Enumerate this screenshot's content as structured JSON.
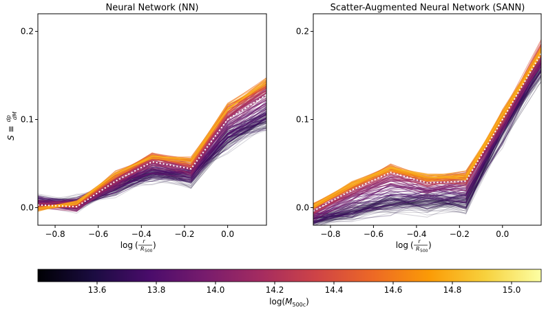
{
  "chart_data": [
    {
      "type": "line",
      "title": "Neural Network (NN)",
      "ylabel_main": "S ≡",
      "ylabel_frac_num": "dp",
      "ylabel_frac_den": "dM",
      "xlabel_prefix": "log",
      "xlabel_frac_num": "r",
      "xlabel_frac_den": "R",
      "xlabel_frac_den_sub": "500",
      "xlim": [
        -0.88,
        0.18
      ],
      "ylim": [
        -0.02,
        0.22
      ],
      "xticks": [
        -0.8,
        -0.6,
        -0.4,
        -0.2,
        0.0
      ],
      "xtick_labels": [
        "−0.8",
        "−0.6",
        "−0.4",
        "−0.2",
        "0.0"
      ],
      "yticks": [
        0.0,
        0.1,
        0.2
      ],
      "ytick_labels": [
        "0.0",
        "0.1",
        "0.2"
      ],
      "x": [
        -0.88,
        -0.7,
        -0.52,
        -0.35,
        -0.17,
        0.0,
        0.18
      ],
      "median": [
        0.003,
        0.001,
        0.03,
        0.052,
        0.044,
        0.1,
        0.128
      ],
      "mass_curves": [
        {
          "mass": 13.7,
          "y": [
            0.006,
            0.004,
            0.022,
            0.04,
            0.035,
            0.078,
            0.1
          ]
        },
        {
          "mass": 13.9,
          "y": [
            0.004,
            0.002,
            0.027,
            0.048,
            0.04,
            0.092,
            0.118
          ]
        },
        {
          "mass": 14.1,
          "y": [
            0.002,
            0.003,
            0.032,
            0.054,
            0.045,
            0.104,
            0.132
          ]
        },
        {
          "mass": 14.3,
          "y": [
            0.0,
            0.004,
            0.035,
            0.057,
            0.05,
            0.11,
            0.138
          ]
        },
        {
          "mass": 14.6,
          "y": [
            -0.002,
            0.006,
            0.038,
            0.058,
            0.053,
            0.113,
            0.143
          ]
        }
      ]
    },
    {
      "type": "line",
      "title": "Scatter-Augmented Neural Network (SANN)",
      "xlabel_prefix": "log",
      "xlabel_frac_num": "r",
      "xlabel_frac_den": "R",
      "xlabel_frac_den_sub": "500",
      "xlim": [
        -0.88,
        0.18
      ],
      "ylim": [
        -0.02,
        0.22
      ],
      "xticks": [
        -0.8,
        -0.6,
        -0.4,
        -0.2,
        0.0
      ],
      "xtick_labels": [
        "−0.8",
        "−0.6",
        "−0.4",
        "−0.2",
        "0.0"
      ],
      "yticks": [
        0.0,
        0.1,
        0.2
      ],
      "ytick_labels": [
        "0.0",
        "0.1",
        "0.2"
      ],
      "x": [
        -0.88,
        -0.7,
        -0.52,
        -0.35,
        -0.17,
        0.0,
        0.18
      ],
      "median": [
        -0.004,
        0.02,
        0.04,
        0.028,
        0.03,
        0.1,
        0.175
      ],
      "mass_curves": [
        {
          "mass": 13.7,
          "y": [
            -0.015,
            -0.005,
            0.005,
            0.006,
            0.008,
            0.088,
            0.16
          ]
        },
        {
          "mass": 13.9,
          "y": [
            -0.01,
            0.01,
            0.025,
            0.02,
            0.022,
            0.095,
            0.168
          ]
        },
        {
          "mass": 14.1,
          "y": [
            -0.005,
            0.018,
            0.036,
            0.028,
            0.03,
            0.1,
            0.175
          ]
        },
        {
          "mass": 14.3,
          "y": [
            -0.001,
            0.023,
            0.042,
            0.032,
            0.034,
            0.104,
            0.18
          ]
        },
        {
          "mass": 14.6,
          "y": [
            0.002,
            0.026,
            0.045,
            0.034,
            0.036,
            0.105,
            0.178
          ]
        }
      ]
    }
  ],
  "colorbar": {
    "label_prefix": "log(",
    "label_var": "M",
    "label_sub": "500c",
    "label_suffix": ")",
    "range": [
      13.4,
      15.1
    ],
    "ticks": [
      13.6,
      13.8,
      14.0,
      14.2,
      14.4,
      14.6,
      14.8,
      15.0
    ],
    "tick_labels": [
      "13.6",
      "13.8",
      "14.0",
      "14.2",
      "14.4",
      "14.6",
      "14.8",
      "15.0"
    ],
    "colormap": "inferno",
    "colors": [
      "#000004",
      "#1b0c41",
      "#4a0c6b",
      "#781c6d",
      "#a52c60",
      "#cf4446",
      "#ed6925",
      "#fb9b06",
      "#f7d13d",
      "#fcffa4"
    ]
  },
  "median_line_color": "#ffffff"
}
